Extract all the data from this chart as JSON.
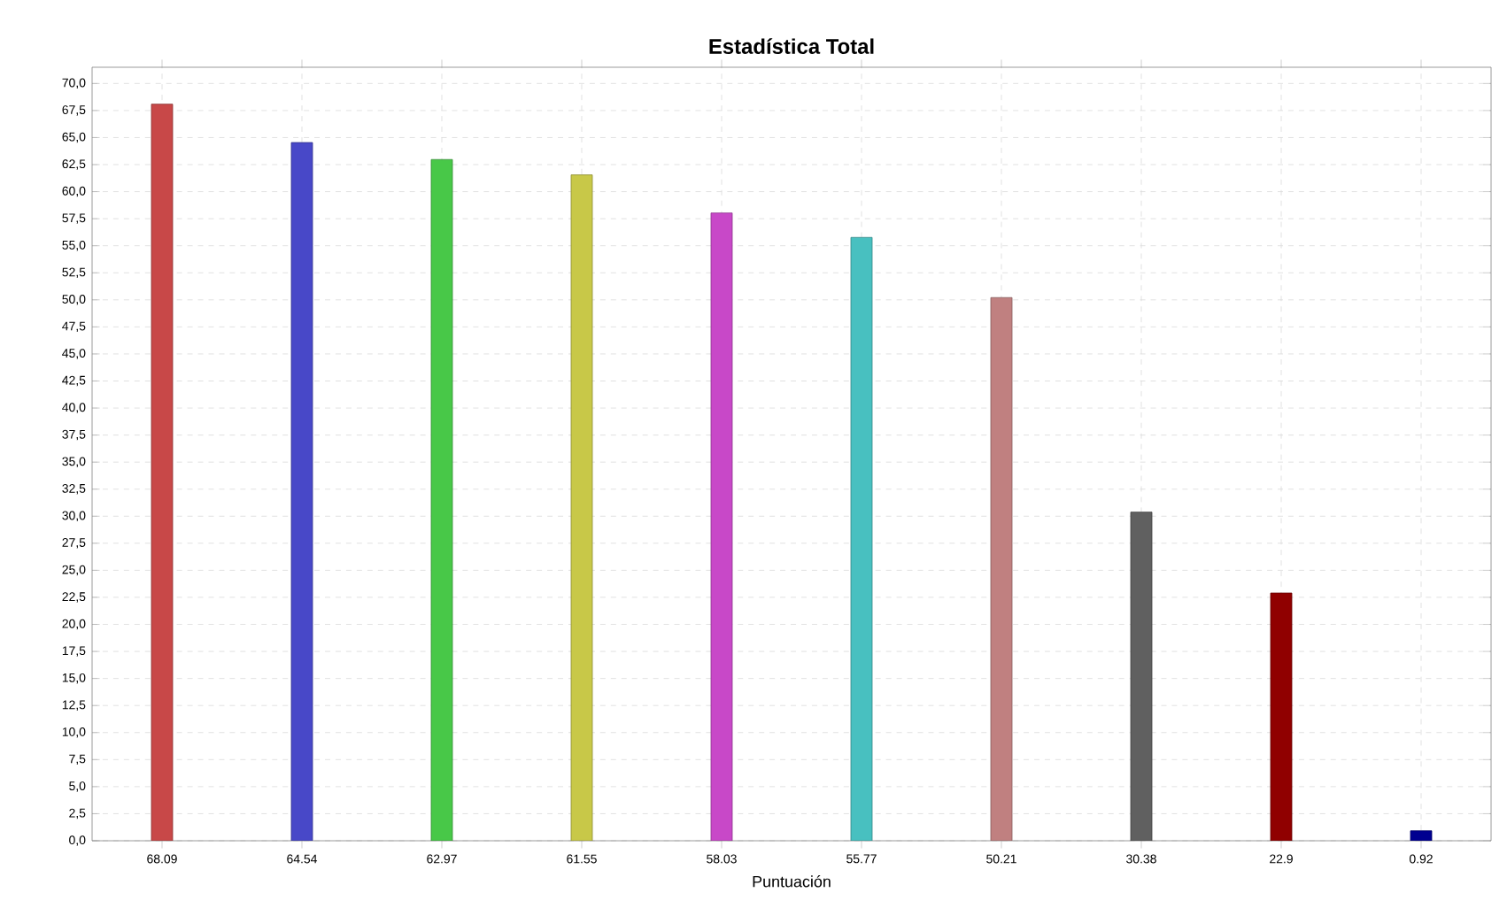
{
  "chart_data": {
    "type": "bar",
    "title": "Estadística Total",
    "xlabel": "Puntuación",
    "categories": [
      "68.09",
      "64.54",
      "62.97",
      "61.55",
      "58.03",
      "55.77",
      "50.21",
      "30.38",
      "22.9",
      "0.92"
    ],
    "values": [
      68.09,
      64.54,
      62.97,
      61.55,
      58.03,
      55.77,
      50.21,
      30.38,
      22.9,
      0.92
    ],
    "colors": [
      "#c84848",
      "#4848c8",
      "#48c848",
      "#c8c848",
      "#c848c8",
      "#48c0c0",
      "#c08080",
      "#606060",
      "#900000",
      "#000090"
    ],
    "ylim": [
      0,
      71.5
    ],
    "yticks": [
      {
        "value": 0,
        "label": "0,0"
      },
      {
        "value": 2.5,
        "label": "2,5"
      },
      {
        "value": 5,
        "label": "5,0"
      },
      {
        "value": 7.5,
        "label": "7,5"
      },
      {
        "value": 10,
        "label": "10,0"
      },
      {
        "value": 12.5,
        "label": "12,5"
      },
      {
        "value": 15,
        "label": "15,0"
      },
      {
        "value": 17.5,
        "label": "17,5"
      },
      {
        "value": 20,
        "label": "20,0"
      },
      {
        "value": 22.5,
        "label": "22,5"
      },
      {
        "value": 25,
        "label": "25,0"
      },
      {
        "value": 27.5,
        "label": "27,5"
      },
      {
        "value": 30,
        "label": "30,0"
      },
      {
        "value": 32.5,
        "label": "32,5"
      },
      {
        "value": 35,
        "label": "35,0"
      },
      {
        "value": 37.5,
        "label": "37,5"
      },
      {
        "value": 40,
        "label": "40,0"
      },
      {
        "value": 42.5,
        "label": "42,5"
      },
      {
        "value": 45,
        "label": "45,0"
      },
      {
        "value": 47.5,
        "label": "47,5"
      },
      {
        "value": 50,
        "label": "50,0"
      },
      {
        "value": 52.5,
        "label": "52,5"
      },
      {
        "value": 55,
        "label": "55,0"
      },
      {
        "value": 57.5,
        "label": "57,5"
      },
      {
        "value": 60,
        "label": "60,0"
      },
      {
        "value": 62.5,
        "label": "62,5"
      },
      {
        "value": 65,
        "label": "65,0"
      },
      {
        "value": 67.5,
        "label": "67,5"
      },
      {
        "value": 70,
        "label": "70,0"
      }
    ],
    "grid": true
  }
}
